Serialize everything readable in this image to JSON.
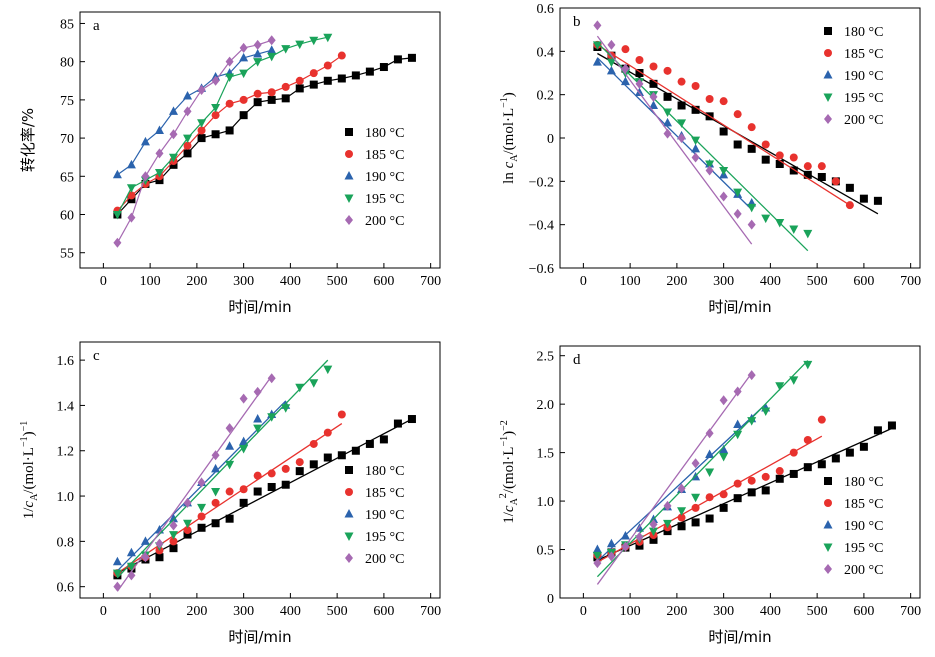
{
  "chart_data": [
    {
      "type": "line",
      "panel_label": "a",
      "xlabel": "时间/min",
      "ylabel": "转化率/%",
      "xlim": [
        -50,
        720
      ],
      "ylim": [
        53,
        86.5
      ],
      "xticks": [
        0,
        100,
        200,
        300,
        400,
        500,
        600,
        700
      ],
      "yticks": [
        55,
        60,
        65,
        70,
        75,
        80,
        85
      ],
      "legend_position": "right",
      "series": [
        {
          "name": "180 °C",
          "marker": "square",
          "color": "#000000",
          "x": [
            30,
            60,
            90,
            120,
            150,
            180,
            210,
            240,
            270,
            300,
            330,
            360,
            390,
            420,
            450,
            480,
            510,
            540,
            570,
            600,
            630,
            660
          ],
          "y": [
            60,
            62,
            64,
            64.5,
            66.5,
            68,
            70,
            70.5,
            71,
            73,
            74.7,
            75,
            75.2,
            76.5,
            77,
            77.5,
            77.8,
            78.2,
            78.7,
            79.3,
            80.3,
            80.5
          ]
        },
        {
          "name": "185 °C",
          "marker": "circle",
          "color": "#e8322e",
          "x": [
            30,
            60,
            90,
            120,
            150,
            180,
            210,
            240,
            270,
            300,
            330,
            360,
            390,
            420,
            450,
            480,
            510
          ],
          "y": [
            60.5,
            62.5,
            64,
            65,
            67,
            69,
            71,
            73,
            74.5,
            75,
            75.8,
            76,
            76.7,
            77.5,
            78.5,
            79.5,
            80.8
          ]
        },
        {
          "name": "190 °C",
          "marker": "triangle",
          "color": "#2b63ad",
          "x": [
            30,
            60,
            90,
            120,
            150,
            180,
            210,
            240,
            270,
            300,
            330,
            360
          ],
          "y": [
            65.2,
            66.5,
            69.5,
            71,
            73.5,
            75.5,
            76.5,
            78,
            78.5,
            80.5,
            81,
            81.5
          ]
        },
        {
          "name": "195 °C",
          "marker": "triangle-down",
          "color": "#1aa35a",
          "x": [
            30,
            60,
            90,
            120,
            150,
            180,
            210,
            240,
            270,
            300,
            330,
            360,
            390,
            420,
            450,
            480
          ],
          "y": [
            60,
            63.5,
            64.5,
            65.5,
            67.5,
            70,
            72,
            74,
            78,
            78.5,
            80,
            80.7,
            81.7,
            82.3,
            82.8,
            83.2
          ]
        },
        {
          "name": "200 °C",
          "marker": "diamond",
          "color": "#a66ab2",
          "x": [
            30,
            60,
            90,
            120,
            150,
            180,
            210,
            240,
            270,
            300,
            330,
            360
          ],
          "y": [
            56.3,
            59.6,
            65,
            68,
            70.5,
            73.5,
            76.3,
            77.5,
            80,
            81.8,
            82.2,
            82.8
          ]
        }
      ]
    },
    {
      "type": "scatter",
      "panel_label": "b",
      "xlabel": "时间/min",
      "ylabel_parts": [
        "ln ",
        "c",
        "A",
        "/(mol·L",
        "−1",
        ")"
      ],
      "xlim": [
        -50,
        720
      ],
      "ylim": [
        -0.6,
        0.6
      ],
      "xticks": [
        0,
        100,
        200,
        300,
        400,
        500,
        600,
        700
      ],
      "yticks": [
        -0.6,
        -0.4,
        -0.2,
        0,
        0.2,
        0.4,
        0.6
      ],
      "legend_position": "top-right",
      "series": [
        {
          "name": "180 °C",
          "marker": "square",
          "color": "#000000",
          "x": [
            30,
            60,
            90,
            120,
            150,
            180,
            210,
            240,
            270,
            300,
            330,
            360,
            390,
            420,
            450,
            480,
            510,
            540,
            570,
            600,
            630
          ],
          "y": [
            0.42,
            0.38,
            0.32,
            0.3,
            0.25,
            0.19,
            0.15,
            0.13,
            0.1,
            0.03,
            -0.03,
            -0.05,
            -0.1,
            -0.12,
            -0.15,
            -0.17,
            -0.18,
            -0.2,
            -0.23,
            -0.28,
            -0.29
          ],
          "fit": [
            [
              30,
              0.39
            ],
            [
              630,
              -0.35
            ]
          ]
        },
        {
          "name": "185 °C",
          "marker": "circle",
          "color": "#e8322e",
          "x": [
            30,
            60,
            90,
            120,
            150,
            180,
            210,
            240,
            270,
            300,
            330,
            360,
            390,
            420,
            450,
            480,
            510,
            540,
            570
          ],
          "y": [
            0.43,
            0.38,
            0.41,
            0.36,
            0.33,
            0.31,
            0.26,
            0.24,
            0.18,
            0.17,
            0.11,
            0.05,
            -0.03,
            -0.08,
            -0.09,
            -0.13,
            -0.13,
            -0.2,
            -0.31
          ],
          "fit": [
            [
              30,
              0.43
            ],
            [
              570,
              -0.31
            ]
          ]
        },
        {
          "name": "190 °C",
          "marker": "triangle",
          "color": "#2b63ad",
          "x": [
            30,
            60,
            90,
            120,
            150,
            180,
            210,
            240,
            270,
            300,
            330,
            360
          ],
          "y": [
            0.35,
            0.31,
            0.26,
            0.21,
            0.15,
            0.07,
            0.01,
            -0.05,
            -0.12,
            -0.17,
            -0.26,
            -0.3
          ],
          "fit": [
            [
              30,
              0.37
            ],
            [
              360,
              -0.33
            ]
          ]
        },
        {
          "name": "195 °C",
          "marker": "triangle-down",
          "color": "#1aa35a",
          "x": [
            30,
            60,
            90,
            120,
            150,
            180,
            210,
            240,
            270,
            300,
            330,
            360,
            390,
            420,
            450,
            480
          ],
          "y": [
            0.43,
            0.35,
            0.3,
            0.26,
            0.2,
            0.12,
            0.07,
            -0.01,
            -0.12,
            -0.15,
            -0.25,
            -0.32,
            -0.37,
            -0.39,
            -0.42,
            -0.44
          ],
          "fit": [
            [
              30,
              0.44
            ],
            [
              480,
              -0.52
            ]
          ]
        },
        {
          "name": "200 °C",
          "marker": "diamond",
          "color": "#a66ab2",
          "x": [
            30,
            60,
            90,
            120,
            150,
            180,
            210,
            240,
            270,
            300,
            330,
            360
          ],
          "y": [
            0.52,
            0.43,
            0.32,
            0.25,
            0.19,
            0.02,
            0.0,
            -0.09,
            -0.15,
            -0.27,
            -0.35,
            -0.4
          ],
          "fit": [
            [
              30,
              0.47
            ],
            [
              360,
              -0.49
            ]
          ]
        }
      ]
    },
    {
      "type": "scatter",
      "panel_label": "c",
      "xlabel": "时间/min",
      "ylabel_parts": [
        "1/",
        "c",
        "A",
        "/(mol·L",
        "−1",
        ")",
        "−1"
      ],
      "xlim": [
        -50,
        720
      ],
      "ylim": [
        0.55,
        1.68
      ],
      "xticks": [
        0,
        100,
        200,
        300,
        400,
        500,
        600,
        700
      ],
      "yticks": [
        0.6,
        0.8,
        1.0,
        1.2,
        1.4,
        1.6
      ],
      "legend_position": "right",
      "series": [
        {
          "name": "180 °C",
          "marker": "square",
          "color": "#000000",
          "x": [
            30,
            60,
            90,
            120,
            150,
            180,
            210,
            240,
            270,
            300,
            330,
            360,
            390,
            420,
            450,
            480,
            510,
            540,
            570,
            600,
            630,
            660
          ],
          "y": [
            0.65,
            0.68,
            0.72,
            0.73,
            0.77,
            0.83,
            0.86,
            0.88,
            0.9,
            0.97,
            1.02,
            1.04,
            1.05,
            1.11,
            1.14,
            1.17,
            1.18,
            1.2,
            1.23,
            1.25,
            1.32,
            1.34
          ],
          "fit": [
            [
              30,
              0.66
            ],
            [
              660,
              1.34
            ]
          ]
        },
        {
          "name": "185 °C",
          "marker": "circle",
          "color": "#e8322e",
          "x": [
            30,
            60,
            90,
            120,
            150,
            180,
            210,
            240,
            270,
            300,
            330,
            360,
            390,
            420,
            450,
            480,
            510
          ],
          "y": [
            0.66,
            0.69,
            0.73,
            0.76,
            0.8,
            0.85,
            0.91,
            0.97,
            1.02,
            1.03,
            1.09,
            1.1,
            1.12,
            1.15,
            1.23,
            1.28,
            1.36
          ],
          "fit": [
            [
              30,
              0.66
            ],
            [
              510,
              1.32
            ]
          ]
        },
        {
          "name": "190 °C",
          "marker": "triangle",
          "color": "#2b63ad",
          "x": [
            30,
            60,
            90,
            120,
            150,
            180,
            210,
            240,
            270,
            300,
            330,
            360,
            390
          ],
          "y": [
            0.71,
            0.75,
            0.8,
            0.85,
            0.9,
            0.97,
            1.06,
            1.12,
            1.22,
            1.24,
            1.34,
            1.36,
            1.4
          ],
          "fit": [
            [
              30,
              0.67
            ],
            [
              390,
              1.42
            ]
          ]
        },
        {
          "name": "195 °C",
          "marker": "triangle-down",
          "color": "#1aa35a",
          "x": [
            30,
            60,
            90,
            120,
            150,
            180,
            210,
            240,
            270,
            300,
            330,
            360,
            390,
            420,
            450,
            480
          ],
          "y": [
            0.66,
            0.69,
            0.74,
            0.78,
            0.83,
            0.88,
            0.95,
            1.02,
            1.14,
            1.21,
            1.3,
            1.35,
            1.39,
            1.48,
            1.5,
            1.56
          ],
          "fit": [
            [
              30,
              0.64
            ],
            [
              480,
              1.6
            ]
          ]
        },
        {
          "name": "200 °C",
          "marker": "diamond",
          "color": "#a66ab2",
          "x": [
            30,
            60,
            90,
            120,
            150,
            180,
            210,
            240,
            270,
            300,
            330,
            360
          ],
          "y": [
            0.6,
            0.65,
            0.73,
            0.79,
            0.87,
            0.97,
            1.06,
            1.18,
            1.3,
            1.43,
            1.46,
            1.52
          ],
          "fit": [
            [
              30,
              0.58
            ],
            [
              360,
              1.53
            ]
          ]
        }
      ]
    },
    {
      "type": "scatter",
      "panel_label": "d",
      "xlabel": "时间/min",
      "ylabel_parts": [
        "1/",
        "c",
        "A",
        "2",
        "/(mol·L",
        "−1",
        ")",
        "−2"
      ],
      "xlim": [
        -50,
        720
      ],
      "ylim": [
        0,
        2.6
      ],
      "xticks": [
        0,
        100,
        200,
        300,
        400,
        500,
        600,
        700
      ],
      "yticks": [
        0,
        0.5,
        1.0,
        1.5,
        2.0,
        2.5
      ],
      "legend_position": "right",
      "series": [
        {
          "name": "180 °C",
          "marker": "square",
          "color": "#000000",
          "x": [
            30,
            60,
            90,
            120,
            150,
            180,
            210,
            240,
            270,
            300,
            330,
            360,
            390,
            420,
            450,
            480,
            510,
            540,
            570,
            600,
            630,
            660
          ],
          "y": [
            0.42,
            0.47,
            0.52,
            0.54,
            0.6,
            0.69,
            0.74,
            0.78,
            0.82,
            0.93,
            1.03,
            1.09,
            1.11,
            1.23,
            1.28,
            1.35,
            1.38,
            1.44,
            1.5,
            1.56,
            1.73,
            1.78
          ],
          "fit": [
            [
              30,
              0.39
            ],
            [
              660,
              1.75
            ]
          ]
        },
        {
          "name": "185 °C",
          "marker": "circle",
          "color": "#e8322e",
          "x": [
            30,
            60,
            90,
            120,
            150,
            180,
            210,
            240,
            270,
            300,
            330,
            360,
            390,
            420,
            450,
            480,
            510
          ],
          "y": [
            0.44,
            0.47,
            0.53,
            0.58,
            0.65,
            0.73,
            0.83,
            0.93,
            1.04,
            1.07,
            1.18,
            1.21,
            1.25,
            1.31,
            1.5,
            1.63,
            1.84
          ],
          "fit": [
            [
              30,
              0.37
            ],
            [
              510,
              1.67
            ]
          ]
        },
        {
          "name": "190 °C",
          "marker": "triangle",
          "color": "#2b63ad",
          "x": [
            30,
            60,
            90,
            120,
            150,
            180,
            210,
            240,
            270,
            300,
            330,
            360,
            390
          ],
          "y": [
            0.5,
            0.56,
            0.64,
            0.72,
            0.81,
            0.94,
            1.12,
            1.25,
            1.48,
            1.53,
            1.79,
            1.85,
            1.96
          ],
          "fit": [
            [
              30,
              0.38
            ],
            [
              390,
              2.0
            ]
          ]
        },
        {
          "name": "195 °C",
          "marker": "triangle-down",
          "color": "#1aa35a",
          "x": [
            30,
            60,
            90,
            120,
            150,
            180,
            210,
            240,
            270,
            300,
            330,
            360,
            390,
            420,
            450,
            480
          ],
          "y": [
            0.44,
            0.47,
            0.55,
            0.61,
            0.69,
            0.77,
            0.9,
            1.04,
            1.3,
            1.46,
            1.69,
            1.83,
            1.93,
            2.19,
            2.25,
            2.41
          ],
          "fit": [
            [
              30,
              0.22
            ],
            [
              480,
              2.45
            ]
          ]
        },
        {
          "name": "200 °C",
          "marker": "diamond",
          "color": "#a66ab2",
          "x": [
            30,
            60,
            90,
            120,
            150,
            180,
            210,
            240,
            270,
            300,
            330,
            360
          ],
          "y": [
            0.36,
            0.43,
            0.53,
            0.63,
            0.76,
            0.95,
            1.13,
            1.39,
            1.7,
            2.04,
            2.13,
            2.3
          ],
          "fit": [
            [
              30,
              0.14
            ],
            [
              360,
              2.32
            ]
          ]
        }
      ]
    }
  ]
}
